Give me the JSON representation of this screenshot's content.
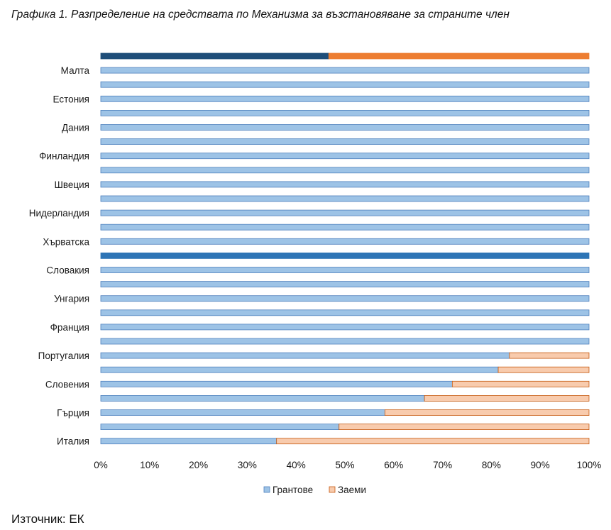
{
  "title": "Графика 1. Разпределение на средствата по Механизма за възстановяване за страните член",
  "source": "Източник: ЕК",
  "chart_data": {
    "type": "bar",
    "orientation": "horizontal",
    "stacked": "percent",
    "title": "Графика 1. Разпределение на средствата по Механизма за възстановяване за страните член",
    "categories": [
      "",
      "Малта",
      "",
      "Естония",
      "",
      "Дания",
      "",
      "Финландия",
      "",
      "Швеция",
      "",
      "Нидерландия",
      "",
      "Хърватска",
      "",
      "Словакия",
      "",
      "Унгария",
      "",
      "Франция",
      "",
      "Португалия",
      "",
      "Словения",
      "",
      "Гърция",
      "",
      "Италия"
    ],
    "series": [
      {
        "name": "Грантове",
        "values": [
          46.7,
          100,
          100,
          100,
          100,
          100,
          100,
          100,
          100,
          100,
          100,
          100,
          100,
          100,
          100,
          100,
          100,
          100,
          100,
          100,
          100,
          83.7,
          81.4,
          72.0,
          66.3,
          58.2,
          48.8,
          36.0
        ]
      },
      {
        "name": "Заеми",
        "values": [
          53.3,
          0,
          0,
          0,
          0,
          0,
          0,
          0,
          0,
          0,
          0,
          0,
          0,
          0,
          0,
          0,
          0,
          0,
          0,
          0,
          0,
          16.3,
          18.6,
          28.0,
          33.7,
          41.8,
          51.2,
          64.0
        ]
      }
    ],
    "highlight_colors": {
      "0": [
        "#1f4e79",
        "#ed7d31"
      ],
      "14": [
        "#2e75b6",
        "#2e75b6"
      ]
    },
    "colors": {
      "grants": "#9dc3e6",
      "grants_border": "#4f81bd",
      "loans": "#f8cbad",
      "loans_border": "#c55a11"
    },
    "x_ticks": [
      "0%",
      "10%",
      "20%",
      "30%",
      "40%",
      "50%",
      "60%",
      "70%",
      "80%",
      "90%",
      "100%"
    ],
    "xlim": [
      0,
      100
    ],
    "grid": false,
    "legend": {
      "position": "bottom",
      "entries": [
        "Грантове",
        "Заеми"
      ]
    }
  }
}
